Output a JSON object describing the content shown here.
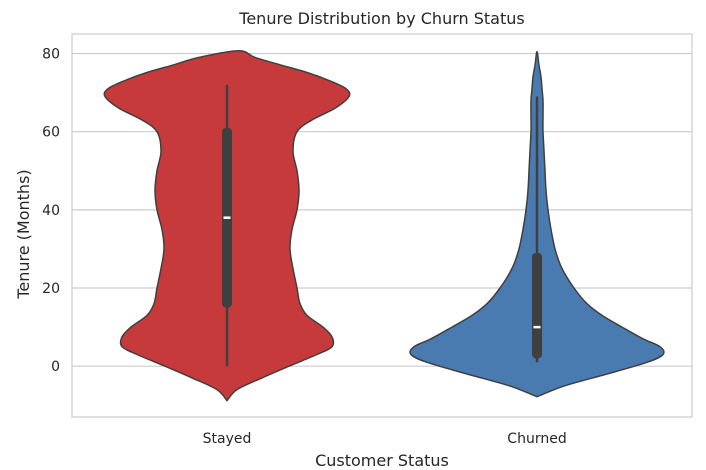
{
  "chart_data": {
    "type": "violin",
    "title": "Tenure Distribution by Churn Status",
    "xlabel": "Customer Status",
    "ylabel": "Tenure (Months)",
    "categories": [
      "Stayed",
      "Churned"
    ],
    "ylim": [
      -13,
      85
    ],
    "yticks": [
      0,
      20,
      40,
      60,
      80
    ],
    "grid": true,
    "series": [
      {
        "category": "Stayed",
        "color": "#c73a3b",
        "min": 0,
        "q1": 15,
        "median": 38,
        "q3": 61,
        "max": 72,
        "density": {
          "y": [
            -8.8,
            -6,
            -3,
            0,
            3,
            5,
            7.5,
            10,
            13,
            16,
            20,
            25,
            30,
            35,
            40,
            45,
            50,
            55,
            60,
            63,
            66,
            69,
            71,
            73,
            75,
            77,
            79,
            80.7
          ],
          "half_width": [
            0,
            10,
            35,
            62,
            90,
            105,
            105,
            96,
            80,
            73,
            70,
            66,
            63,
            65,
            70,
            72,
            70,
            66,
            70,
            85,
            108,
            122,
            119,
            103,
            82,
            55,
            28,
            12
          ]
        }
      },
      {
        "category": "Churned",
        "color": "#4a7bb0",
        "min": 1,
        "q1": 2,
        "median": 10,
        "q3": 29,
        "max": 69,
        "density": {
          "y": [
            -7.8,
            -5,
            -2,
            1,
            3,
            5,
            7,
            10,
            13,
            16,
            20,
            25,
            30,
            35,
            40,
            45,
            50,
            55,
            60,
            64,
            68,
            71,
            74,
            77,
            80.5
          ],
          "half_width": [
            0,
            28,
            70,
            110,
            126,
            123,
            106,
            85,
            65,
            50,
            37,
            25,
            18,
            14,
            11,
            9,
            8,
            7,
            6,
            6,
            6,
            5,
            4,
            2,
            0
          ]
        }
      }
    ]
  }
}
